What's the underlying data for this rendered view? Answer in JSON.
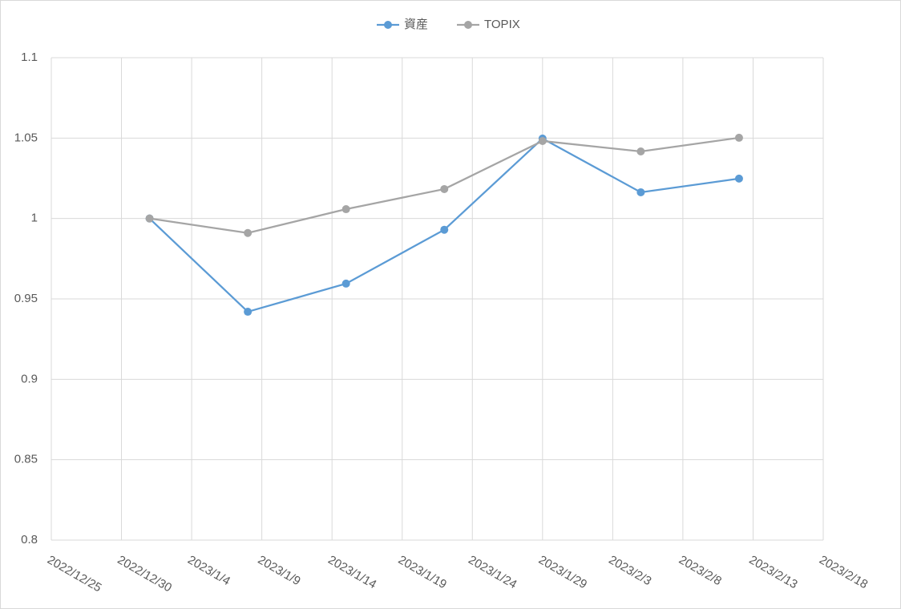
{
  "chart_data": {
    "type": "line",
    "x": [
      "2023/1/1",
      "2023/1/8",
      "2023/1/15",
      "2023/1/22",
      "2023/1/29",
      "2023/2/5",
      "2023/2/12"
    ],
    "series": [
      {
        "name": "資産",
        "color": "#5b9bd5",
        "values": [
          1.0,
          0.942,
          0.9595,
          0.993,
          1.0497,
          1.0163,
          1.0248
        ]
      },
      {
        "name": "TOPIX",
        "color": "#a5a5a5",
        "values": [
          1.0,
          0.991,
          1.0058,
          1.0183,
          1.0482,
          1.0417,
          1.0502
        ]
      }
    ],
    "xlim": [
      "2022/12/25",
      "2023/2/18"
    ],
    "xticks": [
      "2022/12/25",
      "2022/12/30",
      "2023/1/4",
      "2023/1/9",
      "2023/1/14",
      "2023/1/19",
      "2023/1/24",
      "2023/1/29",
      "2023/2/3",
      "2023/2/8",
      "2023/2/13",
      "2023/2/18"
    ],
    "ylim": [
      0.8,
      1.1
    ],
    "yticks": [
      0.8,
      0.85,
      0.9,
      0.95,
      1,
      1.05,
      1.1
    ],
    "grid": true,
    "legend": "top"
  }
}
